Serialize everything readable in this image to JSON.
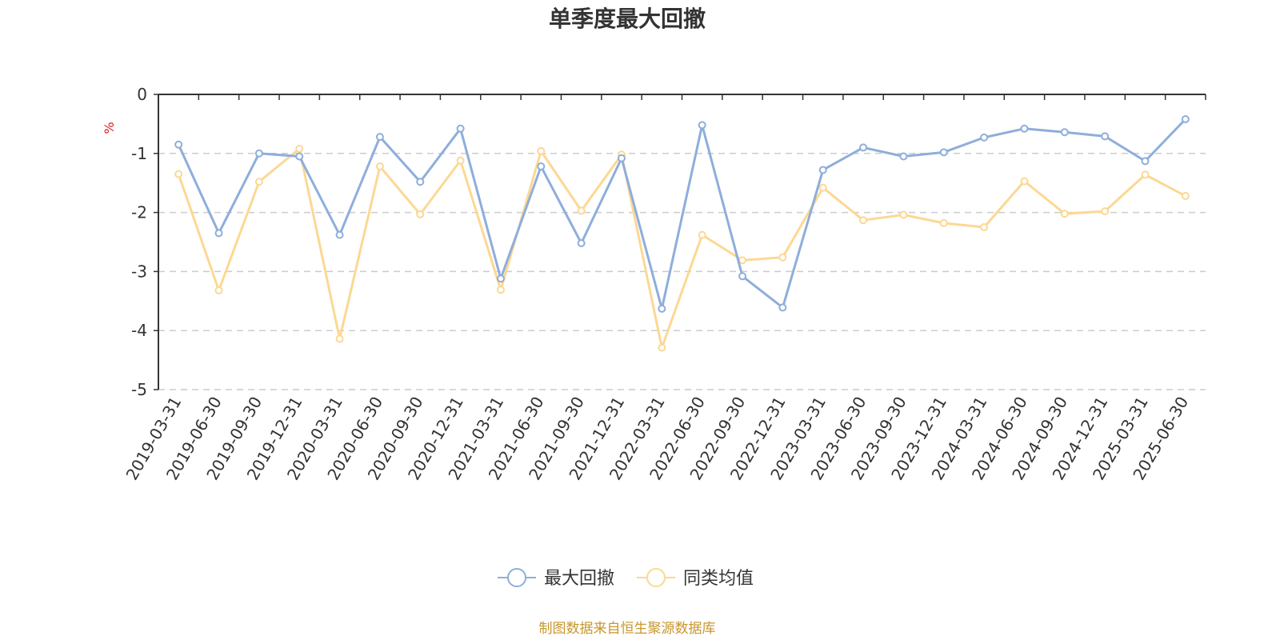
{
  "chart_data": {
    "type": "line",
    "title": "单季度最大回撤",
    "ylabel": "%",
    "ylim": [
      -5,
      0
    ],
    "yticks": [
      0,
      -1,
      -2,
      -3,
      -4,
      -5
    ],
    "grid": "horizontal dashed",
    "legend_position": "bottom-center",
    "categories": [
      "2019-03-31",
      "2019-06-30",
      "2019-09-30",
      "2019-12-31",
      "2020-03-31",
      "2020-06-30",
      "2020-09-30",
      "2020-12-31",
      "2021-03-31",
      "2021-06-30",
      "2021-09-30",
      "2021-12-31",
      "2022-03-31",
      "2022-06-30",
      "2022-09-30",
      "2022-12-31",
      "2023-03-31",
      "2023-06-30",
      "2023-09-30",
      "2023-12-31",
      "2024-03-31",
      "2024-06-30",
      "2024-09-30",
      "2024-12-31",
      "2025-03-31",
      "2025-06-30"
    ],
    "series": [
      {
        "name": "最大回撤",
        "color": "#8eaedb",
        "values": [
          -0.85,
          -2.35,
          -1.0,
          -1.05,
          -2.38,
          -0.72,
          -1.48,
          -0.58,
          -3.12,
          -1.22,
          -2.52,
          -1.08,
          -3.63,
          -0.52,
          -3.08,
          -3.61,
          -1.28,
          -0.9,
          -1.05,
          -0.98,
          -0.73,
          -0.58,
          -0.64,
          -0.71,
          -1.13,
          -0.42
        ]
      },
      {
        "name": "同类均值",
        "color": "#fcd893",
        "values": [
          -1.35,
          -3.32,
          -1.48,
          -0.92,
          -4.14,
          -1.22,
          -2.03,
          -1.12,
          -3.31,
          -0.96,
          -1.97,
          -1.02,
          -4.29,
          -2.38,
          -2.81,
          -2.76,
          -1.58,
          -2.13,
          -2.04,
          -2.18,
          -2.25,
          -1.47,
          -2.02,
          -1.98,
          -1.36,
          -1.72
        ]
      }
    ]
  },
  "footer": {
    "source": "制图数据来自恒生聚源数据库"
  }
}
